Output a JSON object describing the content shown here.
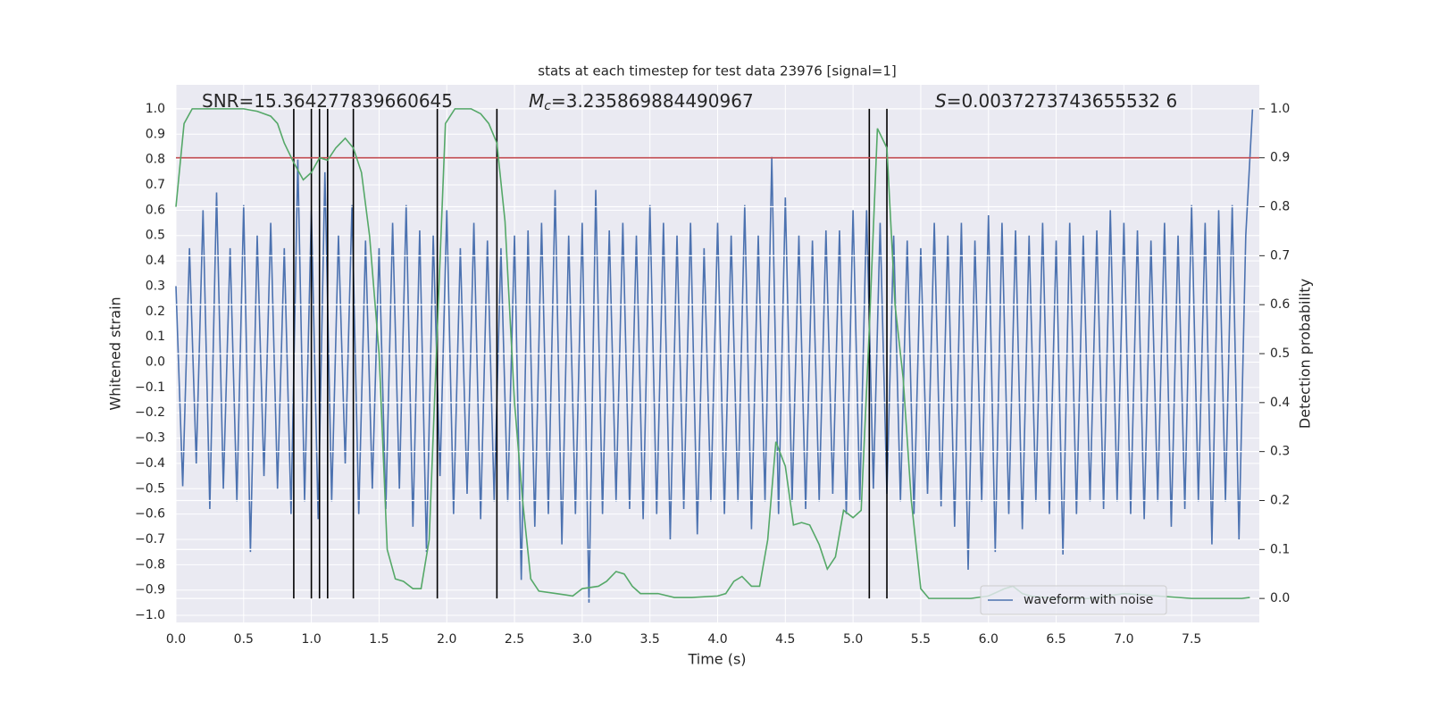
{
  "chart_data": {
    "type": "line",
    "title": "stats at each timestep for test data 23976 [signal=1]",
    "x_label": "Time (s)",
    "y_label": "Whitened strain",
    "y2_label": "Detection probability",
    "annotations": [
      {
        "text": "SNR=15.364277839660645"
      },
      {
        "symbol": "M",
        "sub": "c",
        "text": "=3.235869884490967"
      },
      {
        "symbol": "S",
        "text": "=0.0037273743655532 6"
      }
    ],
    "xlim": [
      0,
      8
    ],
    "ylim": [
      -1.028,
      1.095
    ],
    "y2lim": [
      -0.049,
      1.049
    ],
    "xticks": [
      {
        "value": 0,
        "label": "0.0"
      },
      {
        "value": 0.5,
        "label": "0.5"
      },
      {
        "value": 1,
        "label": "1.0"
      },
      {
        "value": 1.5,
        "label": "1.5"
      },
      {
        "value": 2,
        "label": "2.0"
      },
      {
        "value": 2.5,
        "label": "2.5"
      },
      {
        "value": 3,
        "label": "3.0"
      },
      {
        "value": 3.5,
        "label": "3.5"
      },
      {
        "value": 4,
        "label": "4.0"
      },
      {
        "value": 4.5,
        "label": "4.5"
      },
      {
        "value": 5,
        "label": "5.0"
      },
      {
        "value": 5.5,
        "label": "5.5"
      },
      {
        "value": 6,
        "label": "6.0"
      },
      {
        "value": 6.5,
        "label": "6.5"
      },
      {
        "value": 7,
        "label": "7.0"
      },
      {
        "value": 7.5,
        "label": "7.5"
      }
    ],
    "yticks": [
      {
        "value": -1,
        "label": "−1.0"
      },
      {
        "value": -0.9,
        "label": "−0.9"
      },
      {
        "value": -0.8,
        "label": "−0.8"
      },
      {
        "value": -0.7,
        "label": "−0.7"
      },
      {
        "value": -0.6,
        "label": "−0.6"
      },
      {
        "value": -0.5,
        "label": "−0.5"
      },
      {
        "value": -0.4,
        "label": "−0.4"
      },
      {
        "value": -0.3,
        "label": "−0.3"
      },
      {
        "value": -0.2,
        "label": "−0.2"
      },
      {
        "value": -0.1,
        "label": "−0.1"
      },
      {
        "value": 0,
        "label": "0.0"
      },
      {
        "value": 0.1,
        "label": "0.1"
      },
      {
        "value": 0.2,
        "label": "0.2"
      },
      {
        "value": 0.3,
        "label": "0.3"
      },
      {
        "value": 0.4,
        "label": "0.4"
      },
      {
        "value": 0.5,
        "label": "0.5"
      },
      {
        "value": 0.6,
        "label": "0.6"
      },
      {
        "value": 0.7,
        "label": "0.7"
      },
      {
        "value": 0.8,
        "label": "0.8"
      },
      {
        "value": 0.9,
        "label": "0.9"
      },
      {
        "value": 1,
        "label": "1.0"
      }
    ],
    "y2ticks": [
      {
        "value": 0,
        "label": "0.0"
      },
      {
        "value": 0.1,
        "label": "0.1"
      },
      {
        "value": 0.2,
        "label": "0.2"
      },
      {
        "value": 0.3,
        "label": "0.3"
      },
      {
        "value": 0.4,
        "label": "0.4"
      },
      {
        "value": 0.5,
        "label": "0.5"
      },
      {
        "value": 0.6,
        "label": "0.6"
      },
      {
        "value": 0.7,
        "label": "0.7"
      },
      {
        "value": 0.8,
        "label": "0.8"
      },
      {
        "value": 0.9,
        "label": "0.9"
      },
      {
        "value": 1,
        "label": "1.0"
      }
    ],
    "grid": true,
    "legend_position": "lower right",
    "series": [
      {
        "name": "waveform with noise",
        "color": "#4c72b0",
        "x": [
          0,
          0.05,
          0.1,
          0.15,
          0.2,
          0.25,
          0.3,
          0.35,
          0.4,
          0.45,
          0.5,
          0.55,
          0.6,
          0.65,
          0.7,
          0.75,
          0.8,
          0.85,
          0.9,
          0.95,
          1,
          1.05,
          1.1,
          1.15,
          1.2,
          1.25,
          1.3,
          1.35,
          1.4,
          1.45,
          1.5,
          1.55,
          1.6,
          1.65,
          1.7,
          1.75,
          1.8,
          1.85,
          1.9,
          1.95,
          2,
          2.05,
          2.1,
          2.15,
          2.2,
          2.25,
          2.3,
          2.35,
          2.4,
          2.45,
          2.5,
          2.55,
          2.6,
          2.65,
          2.7,
          2.75,
          2.8,
          2.85,
          2.9,
          2.95,
          3,
          3.05,
          3.1,
          3.15,
          3.2,
          3.25,
          3.3,
          3.35,
          3.4,
          3.45,
          3.5,
          3.55,
          3.6,
          3.65,
          3.7,
          3.75,
          3.8,
          3.85,
          3.9,
          3.95,
          4,
          4.05,
          4.1,
          4.15,
          4.2,
          4.25,
          4.3,
          4.35,
          4.4,
          4.45,
          4.5,
          4.55,
          4.6,
          4.65,
          4.7,
          4.75,
          4.8,
          4.85,
          4.9,
          4.95,
          5,
          5.05,
          5.1,
          5.15,
          5.2,
          5.25,
          5.3,
          5.35,
          5.4,
          5.45,
          5.5,
          5.55,
          5.6,
          5.65,
          5.7,
          5.75,
          5.8,
          5.85,
          5.9,
          5.95,
          6,
          6.05,
          6.1,
          6.15,
          6.2,
          6.25,
          6.3,
          6.35,
          6.4,
          6.45,
          6.5,
          6.55,
          6.6,
          6.65,
          6.7,
          6.75,
          6.8,
          6.85,
          6.9,
          6.95,
          7,
          7.05,
          7.1,
          7.15,
          7.2,
          7.25,
          7.3,
          7.35,
          7.4,
          7.45,
          7.5,
          7.55,
          7.6,
          7.65,
          7.7,
          7.75,
          7.8,
          7.85,
          7.9,
          7.95
        ],
        "values": [
          0.3,
          -0.49,
          0.45,
          -0.4,
          0.6,
          -0.58,
          0.67,
          -0.5,
          0.45,
          -0.55,
          0.62,
          -0.75,
          0.5,
          -0.45,
          0.55,
          -0.5,
          0.45,
          -0.6,
          0.8,
          -0.55,
          0.6,
          -0.62,
          0.75,
          -0.55,
          0.5,
          -0.4,
          0.62,
          -0.6,
          0.48,
          -0.5,
          0.45,
          -0.58,
          0.55,
          -0.5,
          0.62,
          -0.65,
          0.52,
          -0.75,
          0.5,
          -0.45,
          0.6,
          -0.6,
          0.45,
          -0.52,
          0.55,
          -0.62,
          0.48,
          -0.55,
          0.45,
          -0.55,
          0.5,
          -0.86,
          0.52,
          -0.65,
          0.55,
          -0.6,
          0.68,
          -0.72,
          0.5,
          -0.6,
          0.55,
          -0.95,
          0.68,
          -0.6,
          0.52,
          -0.55,
          0.55,
          -0.58,
          0.5,
          -0.62,
          0.62,
          -0.6,
          0.55,
          -0.7,
          0.5,
          -0.58,
          0.55,
          -0.68,
          0.45,
          -0.55,
          0.55,
          -0.6,
          0.5,
          -0.55,
          0.62,
          -0.66,
          0.5,
          -0.55,
          0.81,
          -0.6,
          0.65,
          -0.55,
          0.5,
          -0.58,
          0.48,
          -0.55,
          0.52,
          -0.52,
          0.52,
          -0.6,
          0.6,
          -0.55,
          0.6,
          -0.5,
          0.55,
          -0.52,
          0.5,
          -0.55,
          0.48,
          -0.6,
          0.45,
          -0.52,
          0.55,
          -0.57,
          0.5,
          -0.65,
          0.55,
          -0.82,
          0.48,
          -0.55,
          0.58,
          -0.75,
          0.55,
          -0.6,
          0.52,
          -0.66,
          0.5,
          -0.55,
          0.55,
          -0.6,
          0.48,
          -0.76,
          0.55,
          -0.6,
          0.5,
          -0.55,
          0.52,
          -0.58,
          0.6,
          -0.55,
          0.55,
          -0.6,
          0.52,
          -0.62,
          0.48,
          -0.55,
          0.55,
          -0.65,
          0.5,
          -0.58,
          0.62,
          -0.55,
          0.55,
          -0.72,
          0.6,
          -0.55,
          0.62,
          -0.7,
          0.5,
          1.0
        ]
      },
      {
        "color": "#55a868",
        "axis": "y2",
        "x": [
          0,
          0.06,
          0.12,
          0.3,
          0.5,
          0.6,
          0.7,
          0.75,
          0.8,
          0.87,
          0.94,
          1,
          1.06,
          1.12,
          1.18,
          1.25,
          1.31,
          1.37,
          1.43,
          1.5,
          1.56,
          1.62,
          1.68,
          1.75,
          1.81,
          1.87,
          1.93,
          1.99,
          2.06,
          2.18,
          2.25,
          2.31,
          2.37,
          2.43,
          2.5,
          2.56,
          2.62,
          2.68,
          2.81,
          2.93,
          3,
          3.12,
          3.18,
          3.25,
          3.31,
          3.37,
          3.43,
          3.56,
          3.68,
          3.81,
          4,
          4.06,
          4.12,
          4.18,
          4.25,
          4.31,
          4.37,
          4.43,
          4.5,
          4.56,
          4.62,
          4.68,
          4.75,
          4.81,
          4.87,
          4.93,
          5,
          5.06,
          5.12,
          5.18,
          5.25,
          5.31,
          5.37,
          5.43,
          5.5,
          5.56,
          5.62,
          5.87,
          6,
          6.12,
          6.18,
          6.25,
          6.31,
          6.5,
          6.75,
          7,
          7.5,
          7.87,
          7.93
        ],
        "values": [
          0.8,
          0.97,
          1,
          1,
          1,
          0.995,
          0.985,
          0.97,
          0.93,
          0.89,
          0.855,
          0.87,
          0.9,
          0.895,
          0.92,
          0.94,
          0.92,
          0.87,
          0.74,
          0.5,
          0.1,
          0.04,
          0.035,
          0.02,
          0.02,
          0.12,
          0.55,
          0.97,
          1,
          1,
          0.99,
          0.97,
          0.93,
          0.77,
          0.4,
          0.2,
          0.04,
          0.015,
          0.01,
          0.005,
          0.02,
          0.025,
          0.035,
          0.055,
          0.05,
          0.025,
          0.01,
          0.01,
          0.002,
          0.002,
          0.005,
          0.01,
          0.035,
          0.045,
          0.025,
          0.025,
          0.12,
          0.32,
          0.27,
          0.15,
          0.155,
          0.15,
          0.11,
          0.06,
          0.085,
          0.18,
          0.165,
          0.18,
          0.55,
          0.96,
          0.92,
          0.6,
          0.45,
          0.2,
          0.02,
          0,
          0,
          0,
          0.005,
          0.02,
          0.025,
          0.01,
          0.005,
          0,
          0,
          0.01,
          0,
          0,
          0.002
        ]
      }
    ],
    "threshold": {
      "value": 0.9,
      "axis": "y2",
      "color": "#c44e52"
    },
    "vlines": {
      "x": [
        0.87,
        1.0,
        1.06,
        1.12,
        1.31,
        1.93,
        2.37,
        5.12,
        5.25
      ],
      "ymin": 0,
      "ymax": 1,
      "axis": "y2",
      "color": "#000000"
    }
  }
}
